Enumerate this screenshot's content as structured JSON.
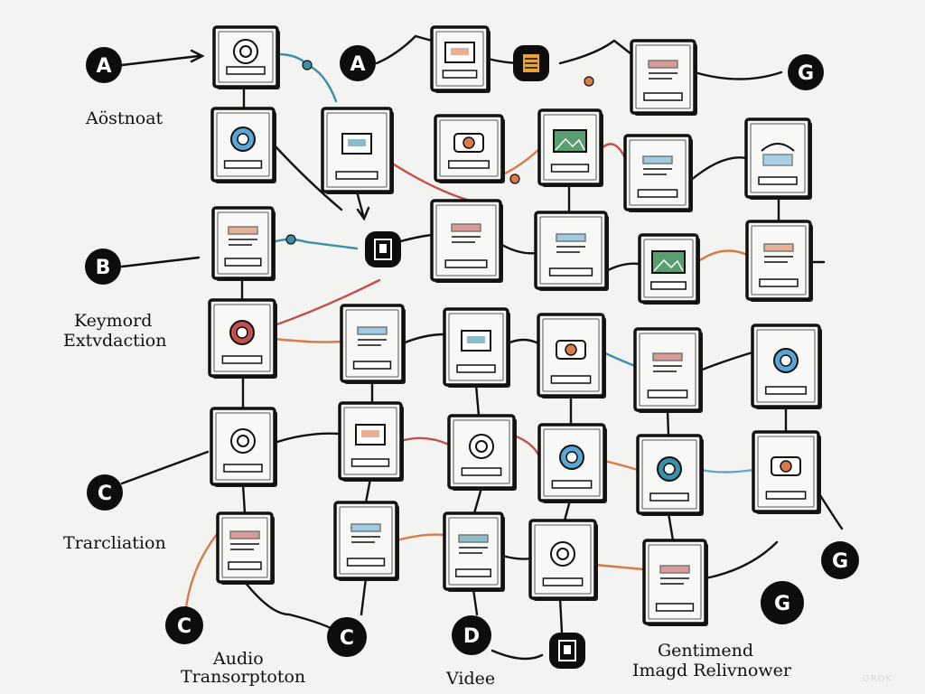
{
  "diagram": {
    "labels": {
      "abstract": "Aöstnoat",
      "keyword_line1": "Keymord",
      "keyword_line2": "Extvdaction",
      "translation": "Trarcliation",
      "audio_line1": "Audio",
      "audio_line2": "Transorptoton",
      "video": "Videe",
      "gentimend_line1": "Gentimend",
      "gentimend_line2": "Imagd Relivnower"
    },
    "badges": [
      {
        "id": "a-left",
        "text": "A"
      },
      {
        "id": "a-mid",
        "text": "A"
      },
      {
        "id": "g-topright",
        "text": "G"
      },
      {
        "id": "b-left",
        "text": "B"
      },
      {
        "id": "c-left",
        "text": "C"
      },
      {
        "id": "c-bottom-left",
        "text": "C"
      },
      {
        "id": "c-bottom-mid",
        "text": "C"
      },
      {
        "id": "d-bottom",
        "text": "D"
      },
      {
        "id": "g-bottom-right",
        "text": "G"
      },
      {
        "id": "g-bottom",
        "text": "G"
      }
    ],
    "watermark": "GROK"
  },
  "colors": {
    "background": "#f3f3f1",
    "ink": "#111111",
    "teal": "#3b8fa8",
    "orange": "#d97a4a",
    "red": "#c0504d",
    "blue": "#5aa7d6"
  }
}
